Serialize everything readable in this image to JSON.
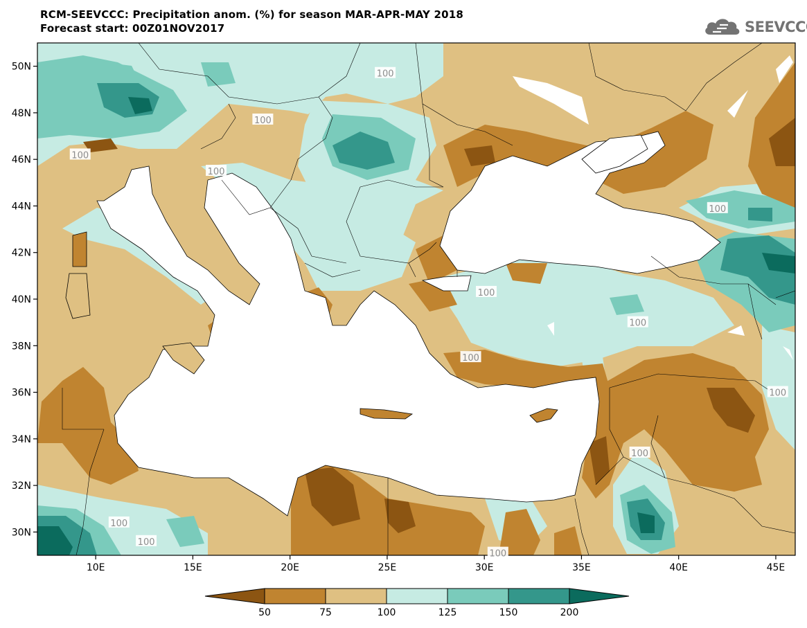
{
  "header": {
    "title_line1": "RCM-SEEVCCC: Precipitation anom. (%) for season MAR-APR-MAY 2018",
    "title_line2": "Forecast start: 00Z01NOV2017"
  },
  "brand": {
    "name": "SEEVCCC",
    "icon": "cloud-logo-icon",
    "color": "#737373"
  },
  "map": {
    "lat_range": [
      29,
      51
    ],
    "lon_range": [
      7,
      46
    ],
    "lat_ticks": [
      {
        "value": 30,
        "label": "30N"
      },
      {
        "value": 32,
        "label": "32N"
      },
      {
        "value": 34,
        "label": "34N"
      },
      {
        "value": 36,
        "label": "36N"
      },
      {
        "value": 38,
        "label": "38N"
      },
      {
        "value": 40,
        "label": "40N"
      },
      {
        "value": 42,
        "label": "42N"
      },
      {
        "value": 44,
        "label": "44N"
      },
      {
        "value": 46,
        "label": "46N"
      },
      {
        "value": 48,
        "label": "48N"
      },
      {
        "value": 50,
        "label": "50N"
      }
    ],
    "lon_ticks": [
      {
        "value": 10,
        "label": "10E"
      },
      {
        "value": 15,
        "label": "15E"
      },
      {
        "value": 20,
        "label": "20E"
      },
      {
        "value": 25,
        "label": "25E"
      },
      {
        "value": 30,
        "label": "30E"
      },
      {
        "value": 35,
        "label": "35E"
      },
      {
        "value": 40,
        "label": "40E"
      },
      {
        "value": 45,
        "label": "45E"
      }
    ],
    "contour_labels": [
      {
        "text": "100",
        "lon": 24.9,
        "lat": 49.7
      },
      {
        "text": "100",
        "lon": 18.6,
        "lat": 47.7
      },
      {
        "text": "100",
        "lon": 9.2,
        "lat": 46.2
      },
      {
        "text": "100",
        "lon": 16.2,
        "lat": 45.5
      },
      {
        "text": "100",
        "lon": 42.0,
        "lat": 43.9
      },
      {
        "text": "100",
        "lon": 30.1,
        "lat": 40.3
      },
      {
        "text": "100",
        "lon": 37.9,
        "lat": 39.0
      },
      {
        "text": "100",
        "lon": 29.3,
        "lat": 37.5
      },
      {
        "text": "100",
        "lon": 45.1,
        "lat": 36.0
      },
      {
        "text": "100",
        "lon": 38.0,
        "lat": 33.4
      },
      {
        "text": "100",
        "lon": 11.2,
        "lat": 30.4
      },
      {
        "text": "100",
        "lon": 12.6,
        "lat": 29.6
      },
      {
        "text": "100",
        "lon": 30.7,
        "lat": 29.1
      }
    ]
  },
  "legend": {
    "colors": [
      "#8c5512",
      "#c08430",
      "#dfc082",
      "#c6ebe3",
      "#7acbbb",
      "#34978b",
      "#0b6b5d"
    ],
    "labels": [
      "50",
      "75",
      "100",
      "125",
      "150",
      "200"
    ]
  }
}
